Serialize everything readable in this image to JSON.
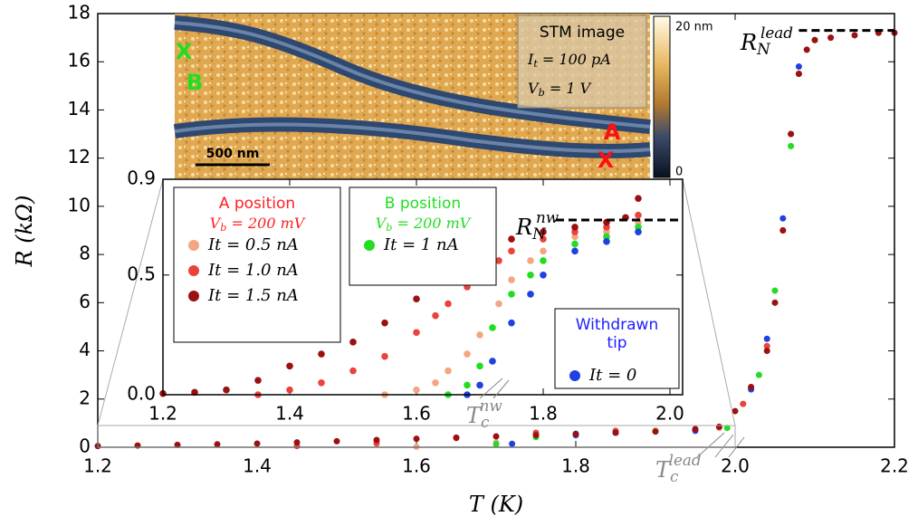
{
  "chart_data": [
    {
      "type": "scatter",
      "xlabel": {
        "text": "T",
        "rest": " (K)"
      },
      "ylabel": {
        "text": "R",
        "rest": " (kΩ)"
      },
      "xlim": [
        1.2,
        2.2
      ],
      "ylim": [
        0,
        18
      ],
      "xticks": [
        1.2,
        1.4,
        1.6,
        1.8,
        {
          "value": 2,
          "label": "2.0"
        },
        2.2
      ],
      "yticks": [
        0,
        2,
        4,
        6,
        8,
        10,
        12,
        14,
        16,
        18
      ],
      "series": [
        {
          "color": "#f4a582",
          "x": [
            1.6,
            1.7,
            1.8,
            1.9,
            1.98,
            2.02,
            2.05,
            2.07,
            2.09
          ],
          "values": [
            0.02,
            0.2,
            0.55,
            0.7,
            0.8,
            2.5,
            6,
            13,
            16.5
          ]
        },
        {
          "color": "#e8443a",
          "x": [
            1.45,
            1.55,
            1.65,
            1.75,
            1.85,
            1.95,
            2.01,
            2.04,
            2.06,
            2.08
          ],
          "values": [
            0.05,
            0.16,
            0.38,
            0.6,
            0.68,
            0.75,
            1.8,
            4.2,
            9,
            15.5
          ]
        },
        {
          "color": "#22dd22",
          "x": [
            1.7,
            1.75,
            1.8,
            1.9,
            1.99,
            2.03,
            2.05,
            2.07,
            2.1
          ],
          "values": [
            0.12,
            0.42,
            0.56,
            0.66,
            0.8,
            3,
            6.5,
            12.5,
            16.9
          ]
        },
        {
          "color": "#2040e0",
          "x": [
            1.72,
            1.8,
            1.85,
            1.95,
            2.02,
            2.04,
            2.06,
            2.08
          ],
          "values": [
            0.14,
            0.5,
            0.6,
            0.68,
            2.4,
            4.5,
            9.5,
            15.8
          ]
        },
        {
          "color": "#9b1010",
          "x": [
            1.2,
            1.25,
            1.3,
            1.35,
            1.4,
            1.45,
            1.5,
            1.55,
            1.6,
            1.65,
            1.7,
            1.75,
            1.8,
            1.85,
            1.9,
            1.95,
            1.98,
            2.0,
            2.02,
            2.04,
            2.05,
            2.06,
            2.07,
            2.08,
            2.09,
            2.1,
            2.12,
            2.15,
            2.18,
            2.2
          ],
          "values": [
            0.05,
            0.07,
            0.1,
            0.12,
            0.15,
            0.2,
            0.25,
            0.3,
            0.35,
            0.4,
            0.45,
            0.5,
            0.55,
            0.6,
            0.65,
            0.75,
            0.85,
            1.5,
            2.5,
            4,
            6,
            9,
            13,
            15.5,
            16.5,
            16.9,
            17,
            17.1,
            17.2,
            17.2
          ]
        }
      ],
      "hline": {
        "value": 17.3,
        "x": [
          2.08,
          2.2
        ],
        "label": {
          "text": "R",
          "sub": "N",
          "sup": "lead"
        }
      },
      "tc_label": {
        "text": "T",
        "sub": "c",
        "sup": "lead"
      }
    },
    {
      "type": "scatter",
      "xlim": [
        1.2,
        2.02
      ],
      "ylim": [
        0,
        0.9
      ],
      "xticks": [
        1.2,
        1.4,
        1.6,
        1.8,
        {
          "value": 2,
          "label": "2.0"
        }
      ],
      "yticks": [
        {
          "value": 0,
          "label": "0.0"
        },
        0.5,
        0.9
      ],
      "groups": [
        {
          "title": [
            "A position"
          ],
          "color": "#ff2020",
          "subtitle": {
            "text": "V",
            "sub": "b",
            "rest": " = 200 mV"
          },
          "series": [
            {
              "name": "It = 0.5 nA",
              "color": "#f4a582",
              "x": [
                1.55,
                1.6,
                1.63,
                1.65,
                1.68,
                1.7,
                1.73,
                1.75,
                1.78,
                1.8,
                1.85,
                1.9,
                1.95
              ],
              "values": [
                0,
                0.02,
                0.05,
                0.1,
                0.17,
                0.25,
                0.38,
                0.48,
                0.56,
                0.6,
                0.66,
                0.68,
                0.72
              ]
            },
            {
              "name": "It = 1.0 nA",
              "color": "#e8443a",
              "x": [
                1.35,
                1.4,
                1.45,
                1.5,
                1.55,
                1.6,
                1.63,
                1.65,
                1.68,
                1.7,
                1.73,
                1.75,
                1.8,
                1.85,
                1.9,
                1.95
              ],
              "values": [
                0,
                0.02,
                0.05,
                0.1,
                0.16,
                0.26,
                0.33,
                0.38,
                0.45,
                0.5,
                0.56,
                0.6,
                0.65,
                0.68,
                0.7,
                0.75
              ]
            },
            {
              "name": "It = 1.5 nA",
              "color": "#9b1010",
              "x": [
                1.2,
                1.25,
                1.3,
                1.35,
                1.4,
                1.45,
                1.5,
                1.55,
                1.6,
                1.63,
                1.65,
                1.68,
                1.7,
                1.75,
                1.8,
                1.85,
                1.9,
                1.93,
                1.95
              ],
              "values": [
                0.005,
                0.01,
                0.02,
                0.06,
                0.12,
                0.17,
                0.22,
                0.3,
                0.4,
                0.47,
                0.52,
                0.57,
                0.6,
                0.65,
                0.68,
                0.7,
                0.72,
                0.74,
                0.82
              ]
            }
          ]
        },
        {
          "title": [
            "B position"
          ],
          "color": "#22dd22",
          "subtitle": {
            "text": "V",
            "sub": "b",
            "rest": " = 200 mV"
          },
          "series": [
            {
              "name": "It = 1 nA",
              "color": "#22dd22",
              "x": [
                1.65,
                1.68,
                1.7,
                1.72,
                1.75,
                1.78,
                1.8,
                1.85,
                1.9,
                1.95
              ],
              "values": [
                0,
                0.04,
                0.12,
                0.28,
                0.42,
                0.5,
                0.56,
                0.63,
                0.66,
                0.7
              ]
            }
          ]
        },
        {
          "title": [
            "Withdrawn",
            "tip"
          ],
          "color": "#2020ff",
          "series": [
            {
              "name": "It = 0",
              "color": "#2040e0",
              "x": [
                1.68,
                1.7,
                1.72,
                1.75,
                1.78,
                1.8,
                1.85,
                1.9,
                1.95
              ],
              "values": [
                0,
                0.04,
                0.14,
                0.3,
                0.42,
                0.5,
                0.6,
                0.64,
                0.68
              ]
            }
          ]
        }
      ],
      "hline": {
        "value": 0.73,
        "x": [
          1.82,
          2.02
        ],
        "label": {
          "text": "R",
          "sub": "N",
          "sup": "nw"
        }
      },
      "tc_label": {
        "text": "T",
        "sub": "c",
        "sup": "nw"
      }
    }
  ],
  "stm_image": {
    "title": "STM image",
    "current": {
      "text": "I",
      "sub": "t",
      "rest": " = 100 pA"
    },
    "voltage": {
      "text": "V",
      "sub": "b",
      "rest": " = 1 V"
    },
    "scale_bar": "500 nm",
    "colorbar_max": "20 nm",
    "colorbar_min": "0",
    "marker_a": "A",
    "marker_b": "B",
    "cross": "X"
  }
}
